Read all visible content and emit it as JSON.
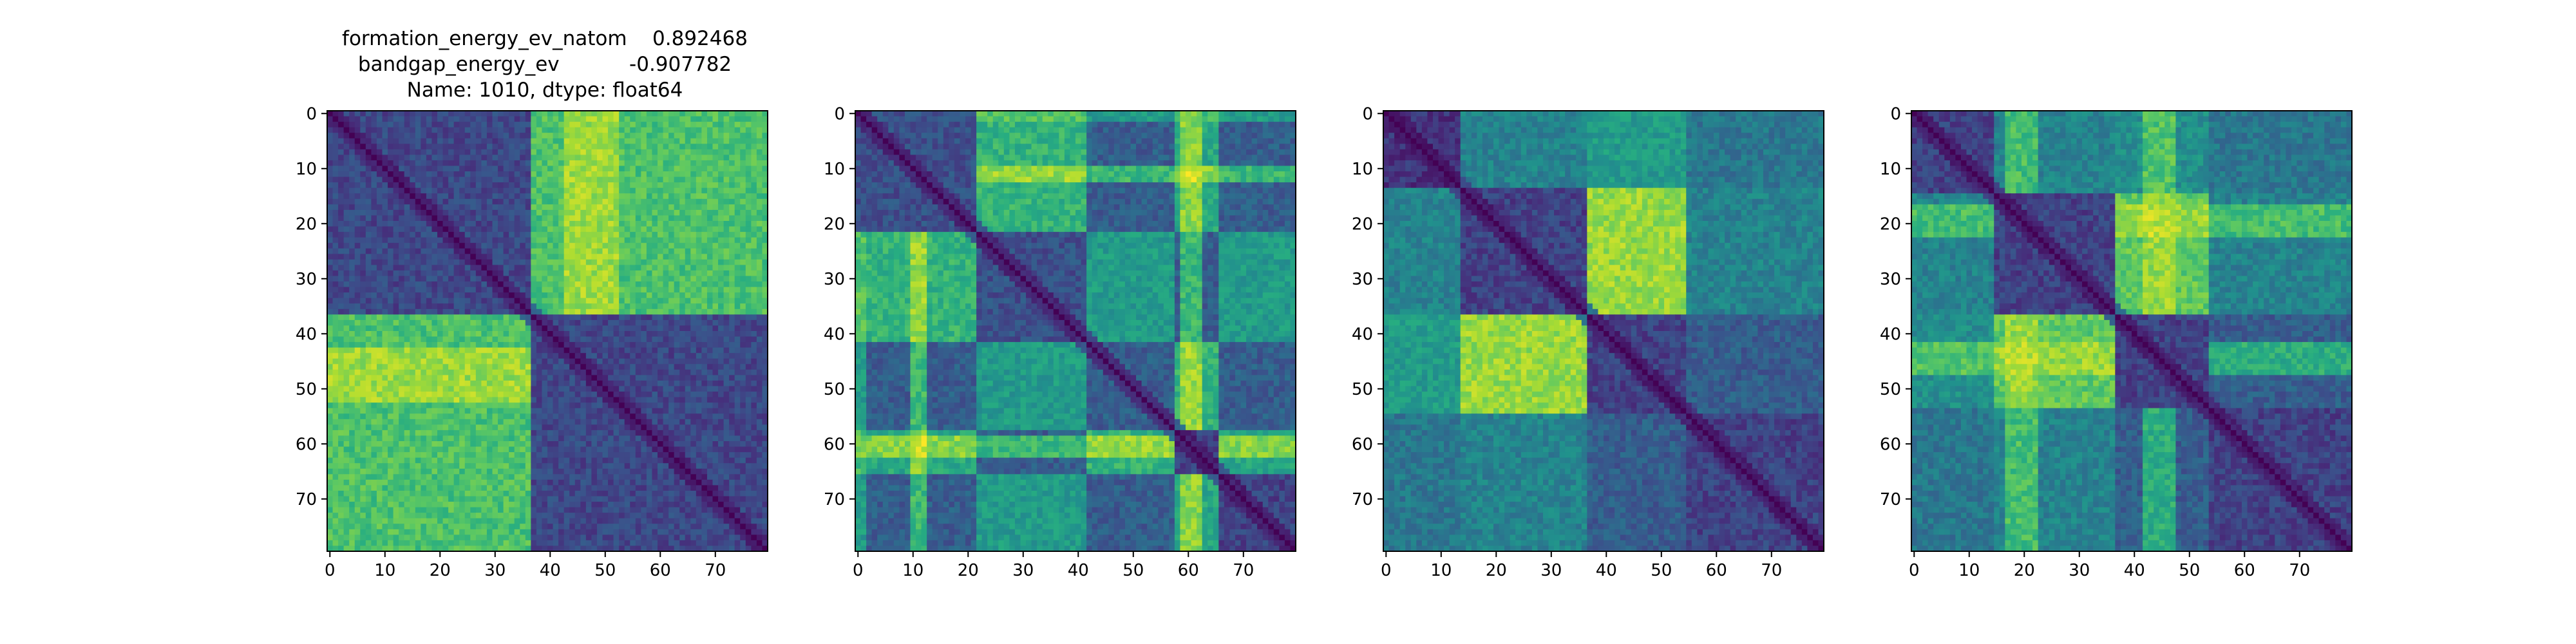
{
  "chart_data": [
    {
      "type": "heatmap",
      "title_lines": [
        "formation_energy_ev_natom    0.892468",
        "bandgap_energy_ev           -0.907782",
        "Name: 1010, dtype: float64"
      ],
      "size": 80,
      "xticks": [
        0,
        10,
        20,
        30,
        40,
        50,
        60,
        70
      ],
      "yticks": [
        0,
        10,
        20,
        30,
        40,
        50,
        60,
        70
      ],
      "xlim": [
        0,
        79
      ],
      "ylim": [
        79,
        0
      ],
      "colormap": "viridis",
      "blocks": [
        0,
        37,
        80
      ],
      "block_levels": [
        [
          0.22,
          0.78
        ],
        [
          0.78,
          0.22
        ]
      ],
      "bands": [
        {
          "start": 0,
          "end": 37,
          "level": 0.55
        },
        {
          "start": 43,
          "end": 53,
          "level": 0.9
        }
      ],
      "diagonal_level": 0.0
    },
    {
      "type": "heatmap",
      "title_lines": [],
      "size": 80,
      "xticks": [
        0,
        10,
        20,
        30,
        40,
        50,
        60,
        70
      ],
      "yticks": [
        0,
        10,
        20,
        30,
        40,
        50,
        60,
        70
      ],
      "xlim": [
        0,
        79
      ],
      "ylim": [
        79,
        0
      ],
      "colormap": "viridis",
      "blocks": [
        0,
        22,
        42,
        58,
        66,
        80
      ],
      "block_levels": [
        [
          0.25,
          0.65,
          0.3,
          0.6,
          0.3
        ],
        [
          0.65,
          0.25,
          0.55,
          0.3,
          0.55
        ],
        [
          0.3,
          0.55,
          0.3,
          0.65,
          0.3
        ],
        [
          0.6,
          0.3,
          0.65,
          0.2,
          0.6
        ],
        [
          0.3,
          0.55,
          0.3,
          0.6,
          0.2
        ]
      ],
      "bands": [
        {
          "start": 10,
          "end": 13,
          "level": 0.95
        },
        {
          "start": 59,
          "end": 63,
          "level": 0.95
        },
        {
          "start": 0,
          "end": 2,
          "level": 0.7
        }
      ],
      "diagonal_level": 0.0
    },
    {
      "type": "heatmap",
      "title_lines": [],
      "size": 80,
      "xticks": [
        0,
        10,
        20,
        30,
        40,
        50,
        60,
        70
      ],
      "yticks": [
        0,
        10,
        20,
        30,
        40,
        50,
        60,
        70
      ],
      "xlim": [
        0,
        79
      ],
      "ylim": [
        79,
        0
      ],
      "colormap": "viridis",
      "blocks": [
        0,
        14,
        37,
        55,
        80
      ],
      "block_levels": [
        [
          0.15,
          0.45,
          0.55,
          0.4
        ],
        [
          0.45,
          0.2,
          0.85,
          0.45
        ],
        [
          0.55,
          0.85,
          0.2,
          0.3
        ],
        [
          0.4,
          0.45,
          0.3,
          0.2
        ]
      ],
      "bands": [],
      "diagonal_level": 0.0
    },
    {
      "type": "heatmap",
      "title_lines": [],
      "size": 80,
      "xticks": [
        0,
        10,
        20,
        30,
        40,
        50,
        60,
        70
      ],
      "yticks": [
        0,
        10,
        20,
        30,
        40,
        50,
        60,
        70
      ],
      "xlim": [
        0,
        79
      ],
      "ylim": [
        79,
        0
      ],
      "colormap": "viridis",
      "blocks": [
        0,
        15,
        37,
        54,
        80
      ],
      "block_levels": [
        [
          0.2,
          0.45,
          0.5,
          0.4
        ],
        [
          0.45,
          0.2,
          0.75,
          0.45
        ],
        [
          0.5,
          0.75,
          0.2,
          0.3
        ],
        [
          0.4,
          0.45,
          0.3,
          0.2
        ]
      ],
      "bands": [
        {
          "start": 17,
          "end": 23,
          "level": 0.85
        },
        {
          "start": 42,
          "end": 48,
          "level": 0.85
        }
      ],
      "diagonal_level": 0.0
    }
  ]
}
